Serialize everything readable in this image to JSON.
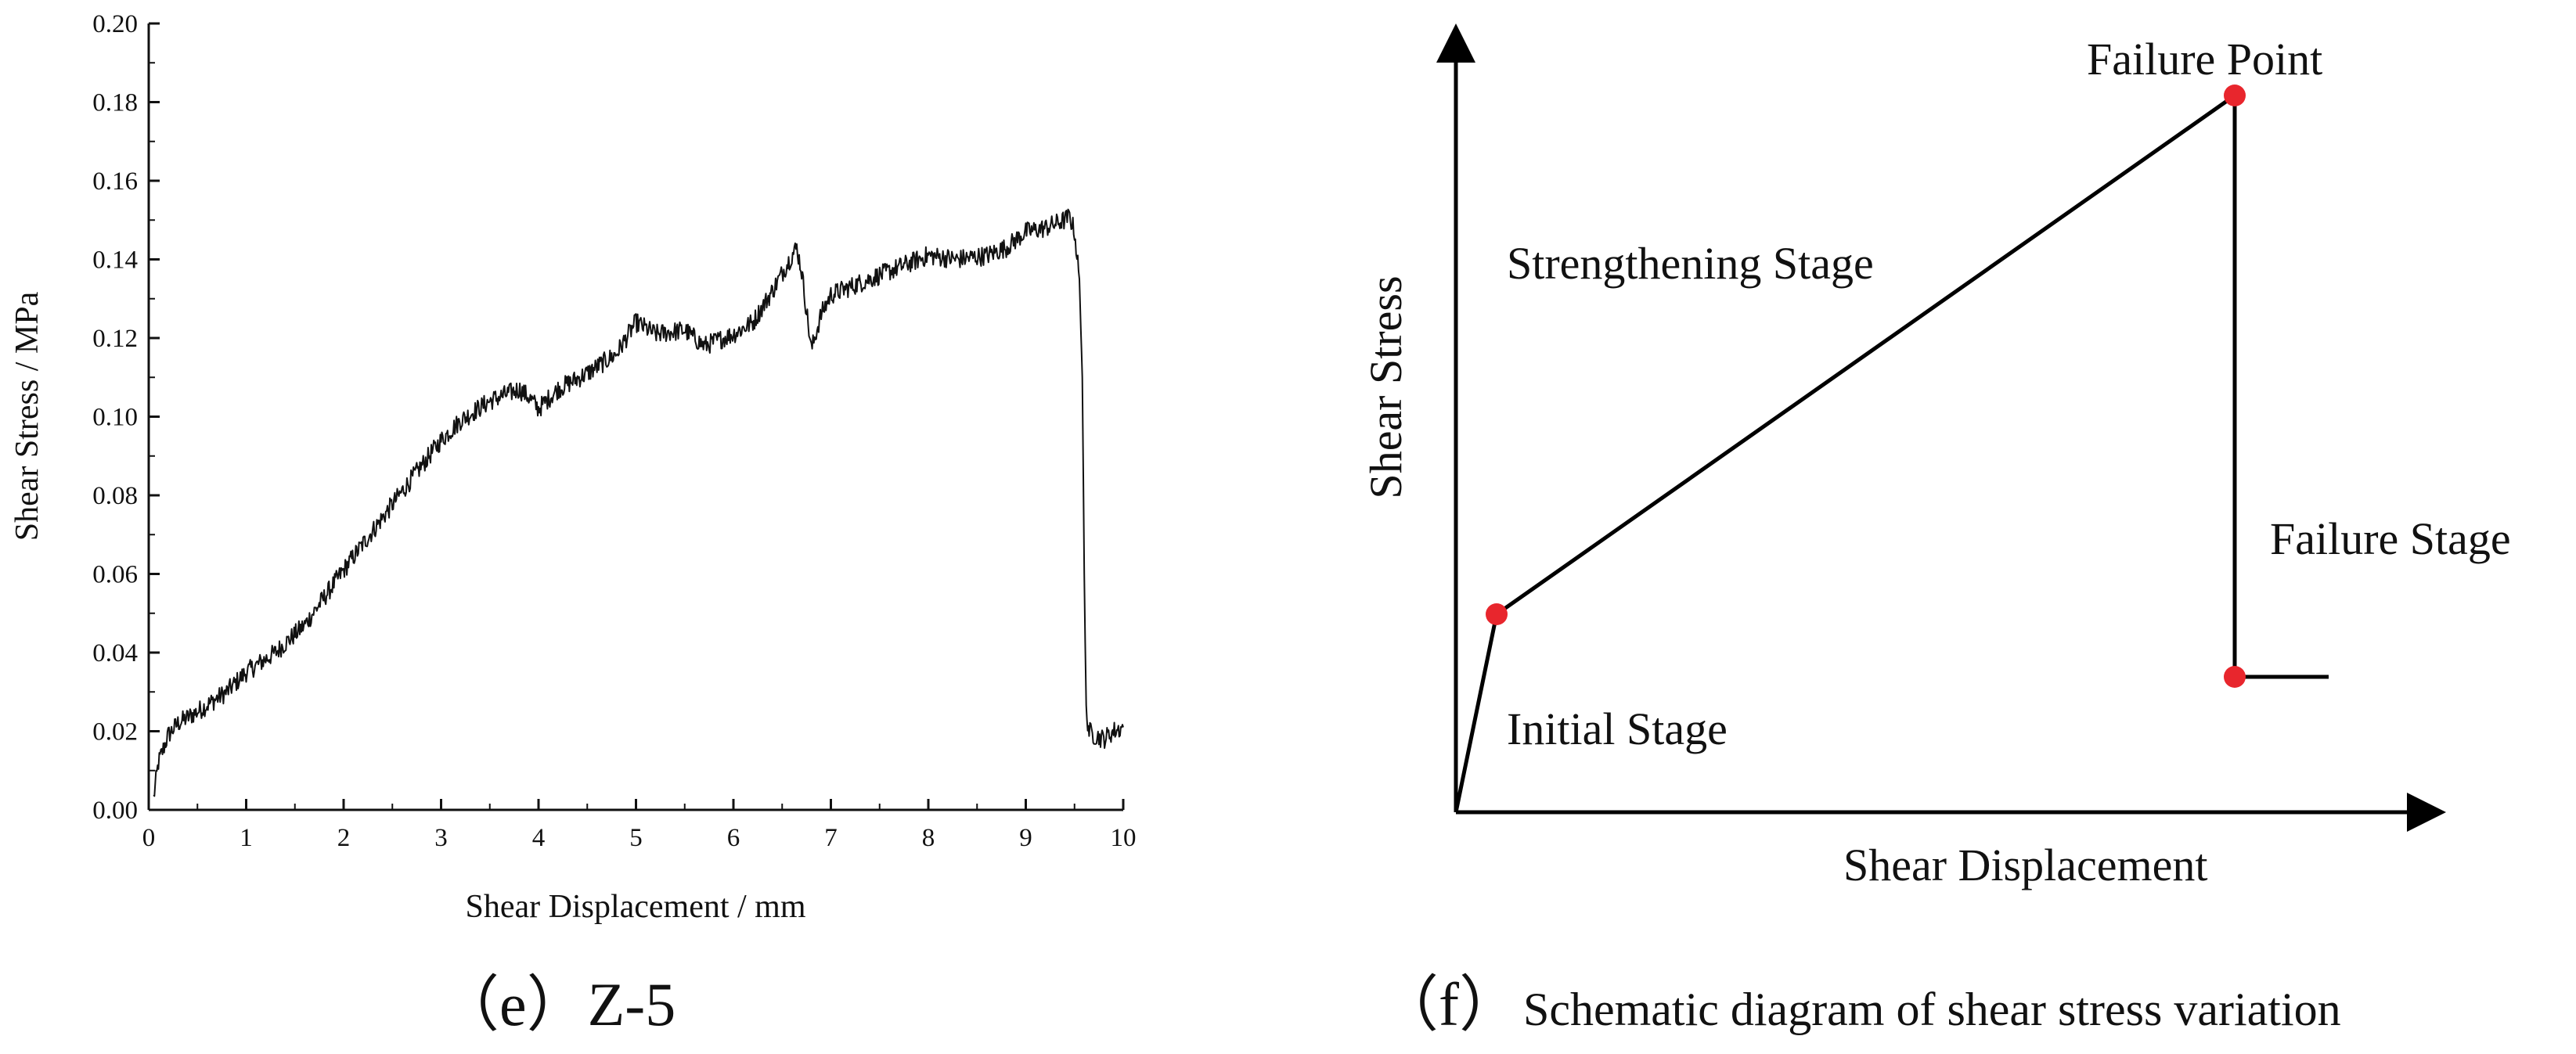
{
  "chart_data": [
    {
      "type": "line",
      "title": "",
      "xlabel": "Shear Displacement / mm",
      "ylabel": "Shear Stress / MPa",
      "xlim": [
        0,
        10
      ],
      "ylim": [
        0,
        0.2
      ],
      "x_ticks": [
        "0",
        "1",
        "2",
        "3",
        "4",
        "5",
        "6",
        "7",
        "8",
        "9",
        "10"
      ],
      "y_ticks": [
        "0.00",
        "0.02",
        "0.04",
        "0.06",
        "0.08",
        "0.10",
        "0.12",
        "0.14",
        "0.16",
        "0.18",
        "0.20"
      ],
      "grid": false,
      "line_color": "#111111",
      "series": [
        {
          "x": [
            0.05,
            0.1,
            0.2,
            0.3,
            0.5,
            0.8,
            1.0,
            1.3,
            1.6,
            2.0,
            2.3,
            2.6,
            3.0,
            3.2,
            3.5,
            3.8,
            3.9,
            4.0,
            4.2,
            4.5,
            4.8,
            5.0,
            5.2,
            5.5,
            5.7,
            6.0,
            6.2,
            6.4,
            6.6,
            6.65,
            6.7,
            6.75,
            6.8,
            6.9,
            7.0,
            7.2,
            7.5,
            7.8,
            8.0,
            8.3,
            8.6,
            8.8,
            9.0,
            9.2,
            9.4,
            9.45,
            9.5,
            9.55,
            9.58,
            9.6,
            9.62,
            9.65,
            9.7,
            9.8,
            9.9,
            10.0
          ],
          "y": [
            0.003,
            0.012,
            0.019,
            0.022,
            0.025,
            0.03,
            0.035,
            0.04,
            0.047,
            0.061,
            0.071,
            0.081,
            0.094,
            0.099,
            0.104,
            0.107,
            0.105,
            0.102,
            0.107,
            0.111,
            0.116,
            0.124,
            0.121,
            0.122,
            0.118,
            0.121,
            0.124,
            0.132,
            0.141,
            0.143,
            0.137,
            0.127,
            0.117,
            0.126,
            0.131,
            0.133,
            0.136,
            0.139,
            0.141,
            0.14,
            0.141,
            0.143,
            0.147,
            0.148,
            0.15,
            0.151,
            0.147,
            0.135,
            0.11,
            0.06,
            0.025,
            0.02,
            0.019,
            0.018,
            0.02,
            0.021
          ]
        }
      ]
    },
    {
      "type": "diagram",
      "xlabel": "Shear Displacement",
      "ylabel": "Shear Stress",
      "annotations": [
        "Failure Point",
        "Strengthening Stage",
        "Failure Stage",
        "Initial Stage"
      ],
      "point_color": "#e8262d",
      "line_color": "#000000"
    }
  ],
  "captions": {
    "left": "（e）Z-5",
    "right_prefix": "（f）",
    "right_text": "Schematic diagram of shear stress variation"
  }
}
